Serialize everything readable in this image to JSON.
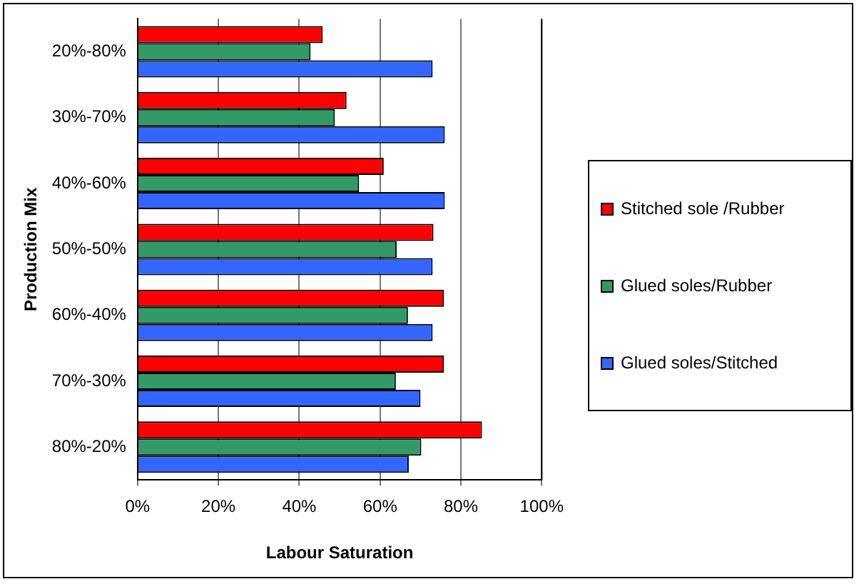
{
  "chart_data": {
    "type": "bar",
    "orientation": "horizontal",
    "xlabel": "Labour Saturation",
    "ylabel": "Production Mix",
    "categories": [
      "20%-80%",
      "30%-70%",
      "40%-60%",
      "50%-50%",
      "60%-40%",
      "70%-30%",
      "80%-20%"
    ],
    "series": [
      {
        "name": "Stitched sole /Rubber",
        "color": "#ff0000",
        "values": [
          45.8,
          51.7,
          60.9,
          73.2,
          75.8,
          75.8,
          85.2
        ]
      },
      {
        "name": "Glued soles/Rubber",
        "color": "#339966",
        "values": [
          42.8,
          48.8,
          54.8,
          64.1,
          66.9,
          63.9,
          70.2
        ]
      },
      {
        "name": "Glued soles/Stitched",
        "color": "#3366ff",
        "values": [
          73,
          76,
          76,
          73,
          73,
          70,
          67.1
        ]
      }
    ],
    "xlim": [
      0,
      100
    ],
    "xticks": [
      {
        "value": 0,
        "label": "0%"
      },
      {
        "value": 20,
        "label": "20%"
      },
      {
        "value": 40,
        "label": "40%"
      },
      {
        "value": 60,
        "label": "60%"
      },
      {
        "value": 80,
        "label": "80%"
      },
      {
        "value": 100,
        "label": "100%"
      }
    ],
    "grid": "x",
    "legend": "right"
  }
}
